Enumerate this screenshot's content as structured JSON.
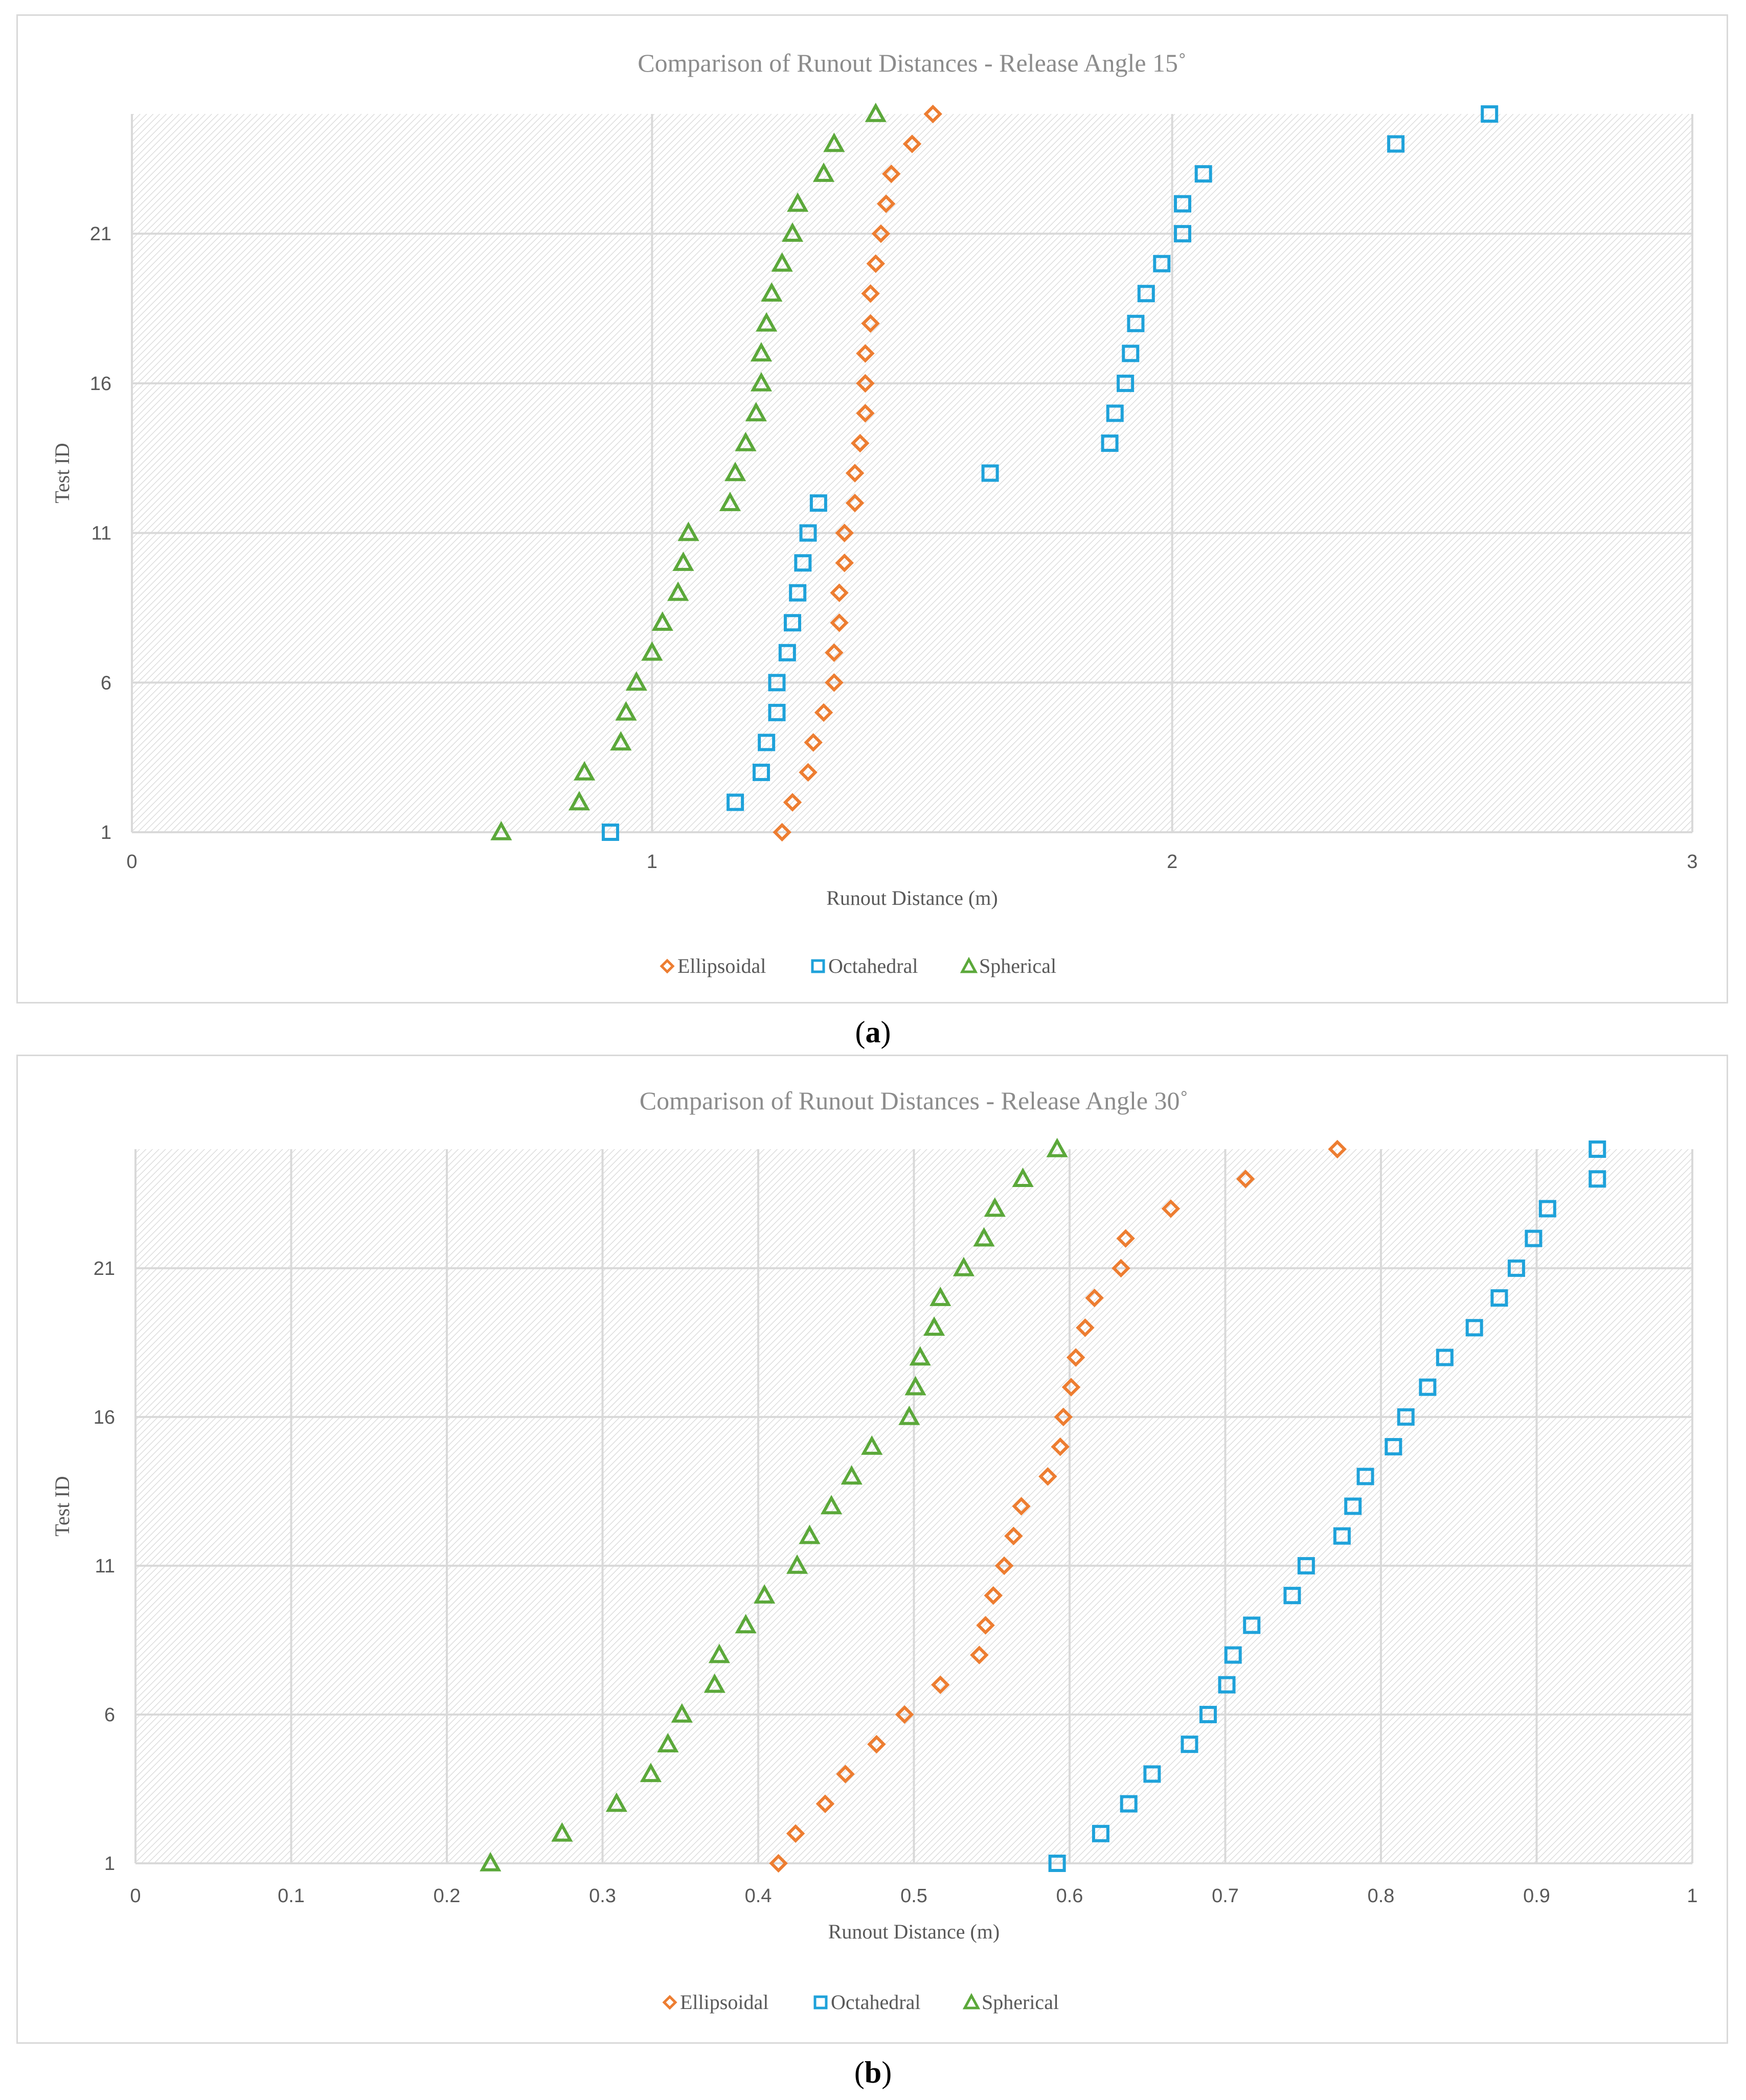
{
  "colors": {
    "ellipsoidal": "#ED7D31",
    "octahedral": "#1FA2DA",
    "spherical": "#5BA83A",
    "grid": "#d9d9d9",
    "axis_text": "#595959",
    "title_text": "#8c8c8c",
    "hatch_line": "#d2d2d2"
  },
  "captions": {
    "a": {
      "open": "(",
      "letter": "a",
      "close": ")"
    },
    "b": {
      "open": "(",
      "letter": "b",
      "close": ")"
    }
  },
  "chart_data": [
    {
      "id": "a",
      "type": "scatter",
      "title": "Comparison of Runout Distances - Release Angle 15˚",
      "xlabel": "Runout Distance (m)",
      "ylabel": "Test ID",
      "xlim": [
        0,
        3
      ],
      "ylim": [
        1,
        25
      ],
      "xticks": [
        0,
        1,
        2,
        3
      ],
      "xtick_labels": [
        "0",
        "1",
        "2",
        "3"
      ],
      "yticks": [
        1,
        6,
        11,
        16,
        21
      ],
      "ytick_labels": [
        "1",
        "6",
        "11",
        "16",
        "21"
      ],
      "grid": true,
      "legend_position": "bottom-center",
      "series": [
        {
          "name": "Ellipsoidal",
          "marker": "diamond",
          "color_key": "ellipsoidal",
          "y": [
            1,
            2,
            3,
            4,
            5,
            6,
            7,
            8,
            9,
            10,
            11,
            12,
            13,
            14,
            15,
            16,
            17,
            18,
            19,
            20,
            21,
            22,
            23,
            24,
            25
          ],
          "x": [
            1.25,
            1.27,
            1.3,
            1.31,
            1.33,
            1.35,
            1.35,
            1.36,
            1.36,
            1.37,
            1.37,
            1.39,
            1.39,
            1.4,
            1.41,
            1.41,
            1.41,
            1.42,
            1.42,
            1.43,
            1.44,
            1.45,
            1.46,
            1.5,
            1.54
          ]
        },
        {
          "name": "Octahedral",
          "marker": "square",
          "color_key": "octahedral",
          "y": [
            1,
            2,
            3,
            4,
            5,
            6,
            7,
            8,
            9,
            10,
            11,
            12,
            13,
            14,
            15,
            16,
            17,
            18,
            19,
            20,
            21,
            22,
            23,
            24,
            25
          ],
          "x": [
            0.92,
            1.16,
            1.21,
            1.22,
            1.24,
            1.24,
            1.26,
            1.27,
            1.28,
            1.29,
            1.3,
            1.32,
            1.65,
            1.88,
            1.89,
            1.91,
            1.92,
            1.93,
            1.95,
            1.98,
            2.02,
            2.02,
            2.06,
            2.43,
            2.61
          ]
        },
        {
          "name": "Spherical",
          "marker": "triangle",
          "color_key": "spherical",
          "y": [
            1,
            2,
            3,
            4,
            5,
            6,
            7,
            8,
            9,
            10,
            11,
            12,
            13,
            14,
            15,
            16,
            17,
            18,
            19,
            20,
            21,
            22,
            23,
            24,
            25
          ],
          "x": [
            0.71,
            0.86,
            0.87,
            0.94,
            0.95,
            0.97,
            1.0,
            1.02,
            1.05,
            1.06,
            1.07,
            1.15,
            1.16,
            1.18,
            1.2,
            1.21,
            1.21,
            1.22,
            1.23,
            1.25,
            1.27,
            1.28,
            1.33,
            1.35,
            1.43
          ]
        }
      ]
    },
    {
      "id": "b",
      "type": "scatter",
      "title": "Comparison of Runout Distances - Release Angle 30˚",
      "xlabel": "Runout Distance (m)",
      "ylabel": "Test ID",
      "xlim": [
        0,
        1
      ],
      "ylim": [
        1,
        25
      ],
      "xticks": [
        0,
        0.1,
        0.2,
        0.3,
        0.4,
        0.5,
        0.6,
        0.7,
        0.8,
        0.9,
        1
      ],
      "xtick_labels": [
        "0",
        "0.1",
        "0.2",
        "0.3",
        "0.4",
        "0.5",
        "0.6",
        "0.7",
        "0.8",
        "0.9",
        "1"
      ],
      "yticks": [
        1,
        6,
        11,
        16,
        21
      ],
      "ytick_labels": [
        "1",
        "6",
        "11",
        "16",
        "21"
      ],
      "grid": true,
      "legend_position": "bottom-center",
      "series": [
        {
          "name": "Ellipsoidal",
          "marker": "diamond",
          "color_key": "ellipsoidal",
          "y": [
            1,
            2,
            3,
            4,
            5,
            6,
            7,
            8,
            9,
            10,
            11,
            12,
            13,
            14,
            15,
            16,
            17,
            18,
            19,
            20,
            21,
            22,
            23,
            24,
            25
          ],
          "x": [
            0.413,
            0.424,
            0.443,
            0.456,
            0.476,
            0.494,
            0.517,
            0.542,
            0.546,
            0.551,
            0.558,
            0.564,
            0.569,
            0.586,
            0.594,
            0.596,
            0.601,
            0.604,
            0.61,
            0.616,
            0.633,
            0.636,
            0.665,
            0.713,
            0.772
          ]
        },
        {
          "name": "Octahedral",
          "marker": "square",
          "color_key": "octahedral",
          "y": [
            1,
            2,
            3,
            4,
            5,
            6,
            7,
            8,
            9,
            10,
            11,
            12,
            13,
            14,
            15,
            16,
            17,
            18,
            19,
            20,
            21,
            22,
            23,
            24,
            25
          ],
          "x": [
            0.592,
            0.62,
            0.638,
            0.653,
            0.677,
            0.689,
            0.701,
            0.705,
            0.717,
            0.743,
            0.752,
            0.775,
            0.782,
            0.79,
            0.808,
            0.816,
            0.83,
            0.841,
            0.86,
            0.876,
            0.887,
            0.898,
            0.907,
            0.939,
            0.939
          ]
        },
        {
          "name": "Spherical",
          "marker": "triangle",
          "color_key": "spherical",
          "y": [
            1,
            2,
            3,
            4,
            5,
            6,
            7,
            8,
            9,
            10,
            11,
            12,
            13,
            14,
            15,
            16,
            17,
            18,
            19,
            20,
            21,
            22,
            23,
            24,
            25
          ],
          "x": [
            0.228,
            0.274,
            0.309,
            0.331,
            0.342,
            0.351,
            0.372,
            0.375,
            0.392,
            0.404,
            0.425,
            0.433,
            0.447,
            0.46,
            0.473,
            0.497,
            0.501,
            0.504,
            0.513,
            0.517,
            0.532,
            0.545,
            0.552,
            0.57,
            0.592
          ]
        }
      ]
    }
  ]
}
